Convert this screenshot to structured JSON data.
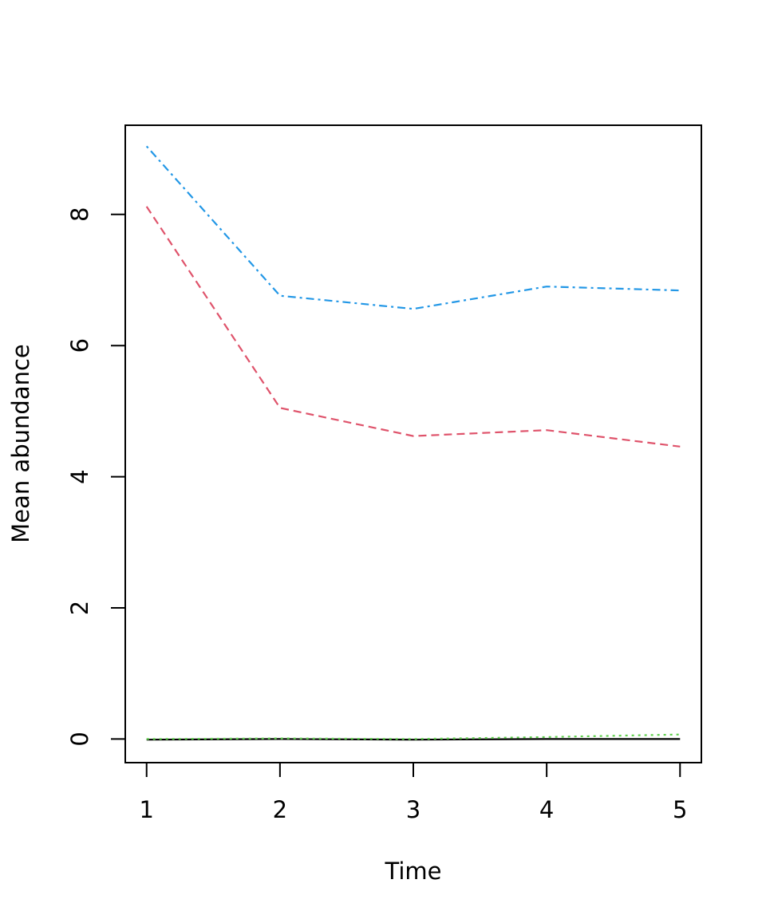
{
  "chart_data": {
    "type": "line",
    "title": "",
    "xlabel": "Time",
    "ylabel": "Mean abundance",
    "x": [
      1,
      2,
      3,
      4,
      5
    ],
    "xlim": [
      0.84,
      5.16
    ],
    "ylim": [
      -0.36,
      9.36
    ],
    "xticks": [
      1,
      2,
      3,
      4,
      5
    ],
    "yticks": [
      0,
      2,
      4,
      6,
      8
    ],
    "grid": false,
    "legend": "none",
    "series": [
      {
        "color": "#000000",
        "dash": "solid",
        "values": [
          -0.01,
          0.0,
          -0.01,
          0.0,
          0.0
        ]
      },
      {
        "color": "#DF536B",
        "dash": "dashed",
        "values": [
          8.12,
          5.05,
          4.62,
          4.71,
          4.46
        ]
      },
      {
        "color": "#61D04F",
        "dash": "dotted",
        "values": [
          0.0,
          0.01,
          0.0,
          0.03,
          0.07
        ]
      },
      {
        "color": "#2297E6",
        "dash": "dotdash",
        "values": [
          9.04,
          6.76,
          6.56,
          6.9,
          6.84
        ]
      }
    ]
  }
}
